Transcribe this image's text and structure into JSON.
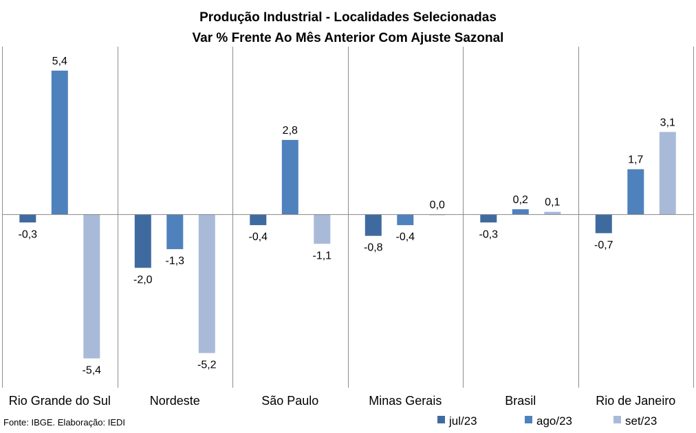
{
  "chart_data": {
    "type": "bar",
    "title": "Produção Industrial - Localidades Selecionadas",
    "subtitle": "Var % Frente Ao Mês Anterior Com Ajuste Sazonal",
    "categories": [
      "Rio Grande do Sul",
      "Nordeste",
      "São Paulo",
      "Minas Gerais",
      "Brasil",
      "Rio de Janeiro"
    ],
    "series": [
      {
        "name": "jul/23",
        "color": "#3F6A9F",
        "values": [
          -0.3,
          -2.0,
          -0.4,
          -0.8,
          -0.3,
          -0.7
        ],
        "labels": [
          "-0,3",
          "-2,0",
          "-0,4",
          "-0,8",
          "-0,3",
          "-0,7"
        ]
      },
      {
        "name": "ago/23",
        "color": "#4F81BD",
        "values": [
          5.4,
          -1.3,
          2.8,
          -0.4,
          0.2,
          1.7
        ],
        "labels": [
          "5,4",
          "-1,3",
          "2,8",
          "-0,4",
          "0,2",
          "1,7"
        ]
      },
      {
        "name": "set/23",
        "color": "#A9BAD9",
        "values": [
          -5.4,
          -5.2,
          -1.1,
          0.0,
          0.1,
          3.1
        ],
        "labels": [
          "-5,4",
          "-5,2",
          "-1,1",
          "0,0",
          "0,1",
          "3,1"
        ]
      }
    ],
    "ylim": [
      -6.5,
      6.3
    ],
    "grid": {
      "horizontal": false,
      "vertical": true
    },
    "legend": "bottom-right"
  },
  "source": "Fonte: IBGE. Elaboração: IEDI"
}
